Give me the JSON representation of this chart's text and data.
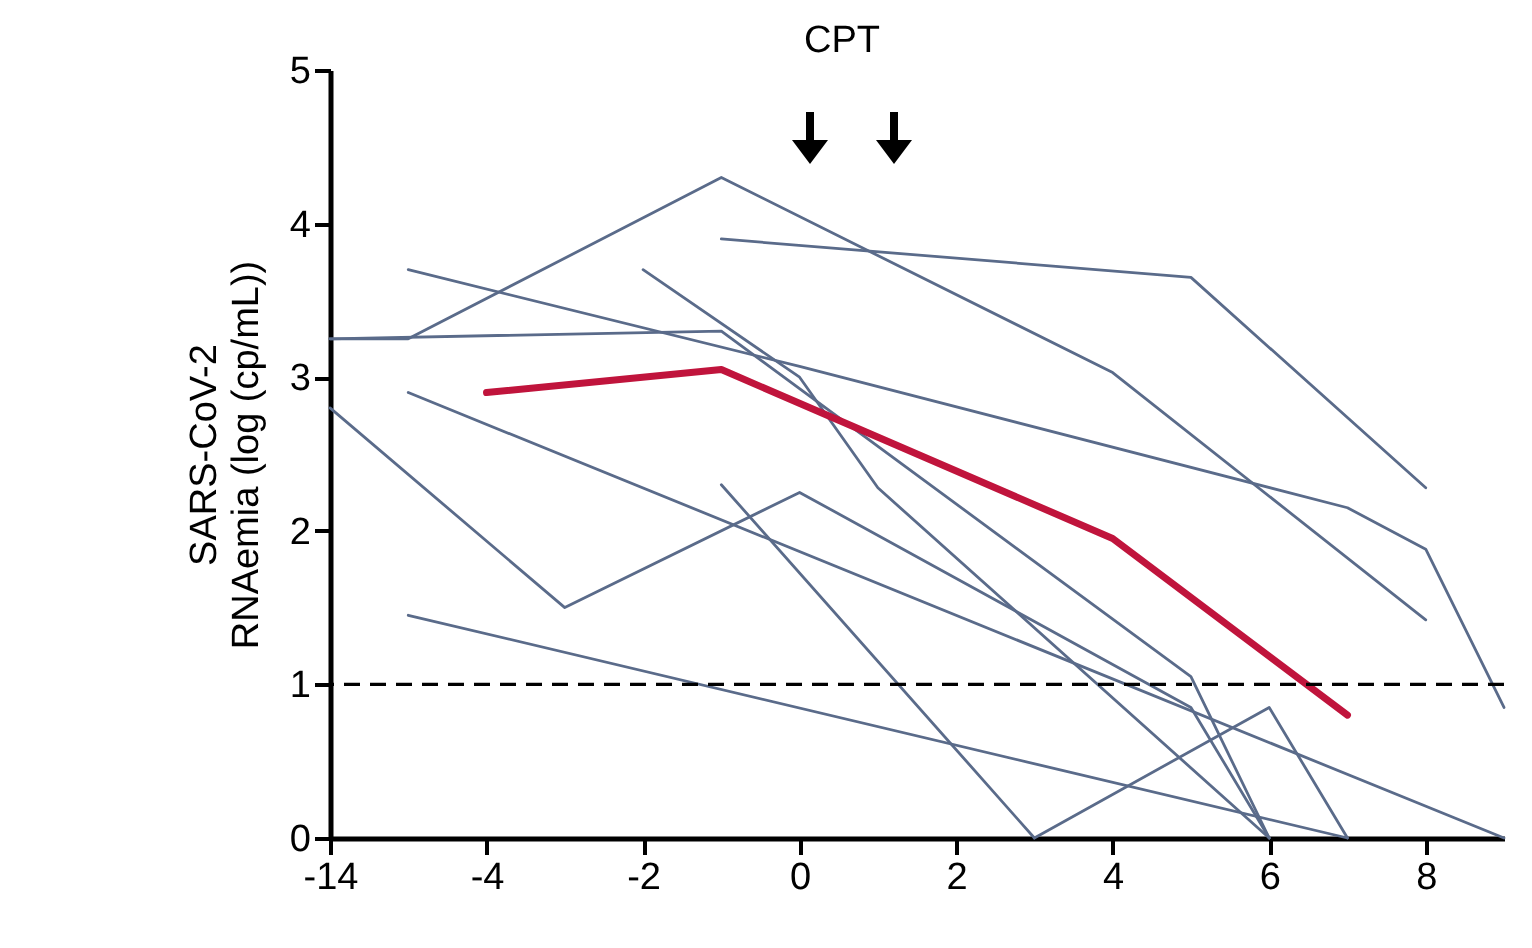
{
  "chart_data": {
    "type": "line",
    "ylabel": "SARS-CoV-2\nRNAemia (log (cp/mL))",
    "annotations": [
      "CPT"
    ],
    "categories": [
      "-14",
      null,
      "-4",
      null,
      "-2",
      null,
      "0",
      null,
      "2",
      null,
      "4",
      null,
      "6",
      null,
      "8",
      null
    ],
    "ylim": [
      0,
      5
    ],
    "yticks": [
      0,
      1,
      2,
      3,
      4,
      5
    ],
    "grid": false,
    "legend": false,
    "marker": "none",
    "line_style": "solid",
    "ref_lines": [
      {
        "axis": "y",
        "value": 1,
        "label": null,
        "color": "#000000",
        "line_style": "dashed"
      }
    ],
    "series": [
      {
        "color": "#5a6b8a",
        "values": [
          3.25,
          3.25,
          null,
          null,
          null,
          4.3,
          null,
          null,
          null,
          null,
          3.03,
          null,
          null,
          null,
          1.42,
          null
        ]
      },
      {
        "color": "#5a6b8a",
        "values": [
          null,
          null,
          null,
          null,
          null,
          3.9,
          null,
          null,
          null,
          null,
          null,
          3.65,
          null,
          null,
          2.28,
          null
        ]
      },
      {
        "color": "#5a6b8a",
        "values": [
          null,
          3.7,
          null,
          null,
          null,
          null,
          3.07,
          null,
          null,
          null,
          null,
          null,
          null,
          2.15,
          1.88,
          0.85
        ]
      },
      {
        "color": "#5a6b8a",
        "values": [
          null,
          null,
          null,
          null,
          3.7,
          null,
          3.0,
          2.28,
          null,
          null,
          null,
          null,
          0,
          null,
          null,
          null
        ]
      },
      {
        "color": "#5a6b8a",
        "values": [
          3.25,
          null,
          null,
          null,
          null,
          3.3,
          null,
          null,
          null,
          null,
          null,
          1.05,
          0,
          null,
          null,
          null
        ]
      },
      {
        "color": "#5a6b8a",
        "values": [
          null,
          2.9,
          null,
          null,
          null,
          null,
          null,
          null,
          null,
          null,
          null,
          null,
          null,
          null,
          null,
          0
        ]
      },
      {
        "color": "#5a6b8a",
        "values": [
          2.8,
          null,
          null,
          1.5,
          null,
          null,
          2.25,
          null,
          null,
          null,
          null,
          0.85,
          0,
          null,
          null,
          null
        ]
      },
      {
        "color": "#5a6b8a",
        "values": [
          null,
          null,
          null,
          null,
          null,
          2.3,
          null,
          null,
          null,
          0,
          null,
          null,
          null,
          null,
          null,
          null
        ]
      },
      {
        "color": "#5a6b8a",
        "values": [
          null,
          1.45,
          null,
          null,
          null,
          null,
          null,
          null,
          null,
          null,
          null,
          null,
          null,
          0,
          null,
          null
        ]
      },
      {
        "color": "#5a6b8a",
        "values": [
          null,
          null,
          null,
          null,
          null,
          null,
          null,
          null,
          null,
          0,
          null,
          null,
          0.85,
          0,
          null,
          null
        ]
      },
      {
        "color": "#c0143c",
        "values": [
          null,
          null,
          2.9,
          null,
          null,
          3.05,
          null,
          null,
          null,
          null,
          1.95,
          null,
          null,
          0.8,
          null,
          null
        ]
      }
    ]
  }
}
